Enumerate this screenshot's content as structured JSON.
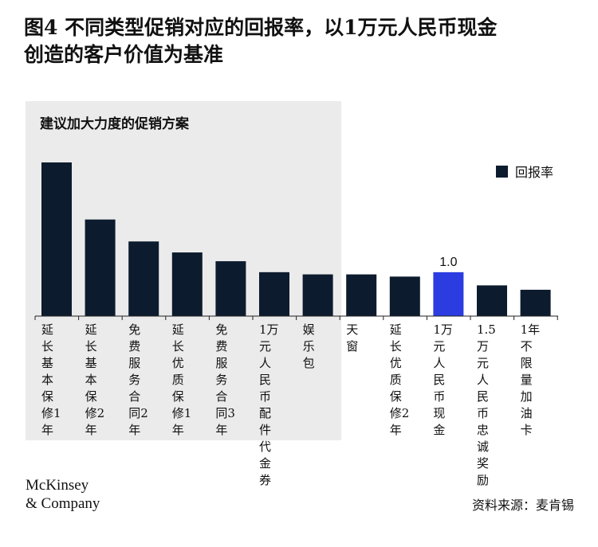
{
  "title": {
    "line1": "图4 不同类型促销对应的回报率，以1万元人民币现金",
    "line2": "创造的客户价值为基准"
  },
  "panel_label": "建议加大力度的促销方案",
  "source": "资料来源：麦肯锡",
  "logo": {
    "line1": "McKinsey",
    "line2": "& Company"
  },
  "colors": {
    "bar": "#0d1b2e",
    "highlight": "#2b3de0",
    "panel": "#ebebeb"
  },
  "chart_data": {
    "type": "bar",
    "title": "图4 不同类型促销对应的回报率，以1万元人民币现金创造的客户价值为基准",
    "categories": [
      "延长基本保修1年",
      "延长基本保修2年",
      "免费服务合同2年",
      "延长优质保修1年",
      "免费服务合同3年",
      "1万元人民币配件代金券",
      "娱乐包",
      "天窗",
      "延长优质保修2年",
      "1万元人民币现金",
      "1.5万元人民币忠诚奖励",
      "1年不限量加油卡"
    ],
    "series": [
      {
        "name": "回报率",
        "values": [
          3.5,
          2.2,
          1.7,
          1.45,
          1.25,
          1.0,
          0.95,
          0.95,
          0.9,
          1.0,
          0.7,
          0.6
        ]
      }
    ],
    "data_labels": [
      {
        "index": 9,
        "text": "1.0"
      }
    ],
    "highlight_index": 9,
    "ylim": [
      0,
      3.5
    ],
    "grid": false,
    "legend_position": "top-right"
  }
}
